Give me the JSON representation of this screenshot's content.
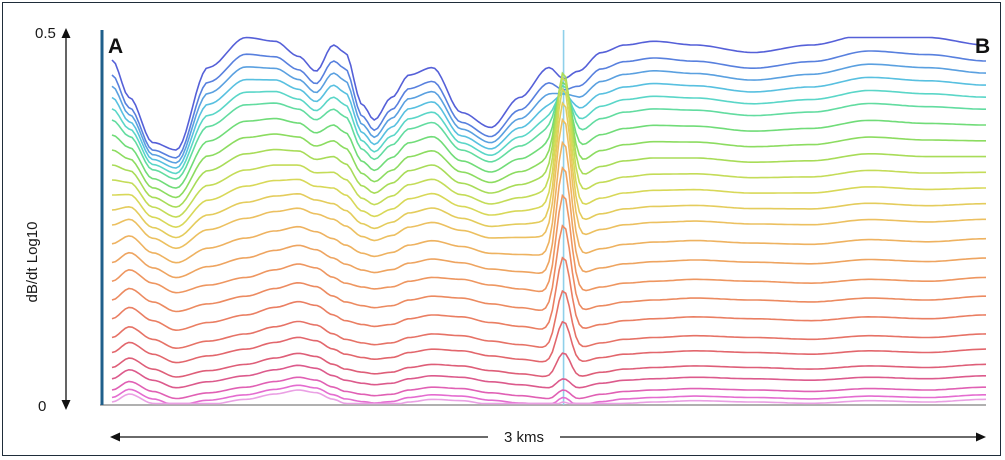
{
  "chart_data": {
    "type": "line",
    "title": "",
    "ylabel": "dB/dt Log10",
    "xlabel": "3 kms",
    "ylim": [
      0,
      0.5
    ],
    "y_ticks": [
      "0",
      "0.5"
    ],
    "profile_start_label": "A",
    "profile_end_label": "B",
    "x_range_km": [
      0,
      3
    ],
    "marker_x_km": 1.55,
    "grid": false,
    "colors": {
      "frame": "#1f2d3a",
      "left_axis_bar": "#1f5f8b",
      "baseline": "#b0b0b0",
      "marker_line": "#8fd0ea"
    },
    "series_colors": [
      "#5560d8",
      "#5880de",
      "#5aa0e0",
      "#58c0e0",
      "#5ad6c8",
      "#62dca0",
      "#70dc78",
      "#8cdc60",
      "#a8dc58",
      "#c4dc58",
      "#d8d858",
      "#e4cc5c",
      "#ecc060",
      "#eeb260",
      "#eea460",
      "#ee9660",
      "#ec8a60",
      "#ea7e62",
      "#e67266",
      "#e2666c",
      "#de5e78",
      "#dc5a8c",
      "#e060b4",
      "#e46cd0",
      "#eaa0e4"
    ],
    "series_base": [
      0.46,
      0.44,
      0.425,
      0.41,
      0.395,
      0.38,
      0.36,
      0.34,
      0.32,
      0.3,
      0.28,
      0.26,
      0.24,
      0.215,
      0.19,
      0.165,
      0.14,
      0.115,
      0.09,
      0.07,
      0.05,
      0.035,
      0.02,
      0.01,
      0.004
    ],
    "shape_x": [
      0,
      0.06,
      0.14,
      0.22,
      0.33,
      0.46,
      0.56,
      0.64,
      0.7,
      0.76,
      0.8,
      0.86,
      0.9,
      0.96,
      1.02,
      1.1,
      1.2,
      1.3,
      1.4,
      1.5,
      1.55,
      1.6,
      1.68,
      1.76,
      1.86,
      2.0,
      2.2,
      2.4,
      2.6,
      2.8,
      3.0
    ],
    "shape_early": [
      0,
      -0.05,
      -0.11,
      -0.12,
      -0.01,
      0.03,
      0.025,
      0.005,
      -0.015,
      0.02,
      0.01,
      -0.06,
      -0.08,
      -0.05,
      -0.02,
      -0.01,
      -0.07,
      -0.09,
      -0.05,
      -0.01,
      -0.025,
      -0.015,
      0.01,
      0.02,
      0.025,
      0.02,
      0.01,
      0.02,
      0.035,
      0.03,
      0.02
    ],
    "shape_late": [
      0,
      0.03,
      -0.005,
      -0.03,
      -0.01,
      0.01,
      0.03,
      0.045,
      0.035,
      0.01,
      -0.005,
      -0.015,
      -0.02,
      -0.015,
      0.0,
      0.01,
      0.005,
      -0.01,
      -0.02,
      -0.03,
      0.0,
      -0.03,
      -0.015,
      -0.005,
      0.0,
      0.005,
      0.0,
      -0.005,
      0.005,
      0.0,
      0.01
    ],
    "spike_amplitude": 0.15
  }
}
